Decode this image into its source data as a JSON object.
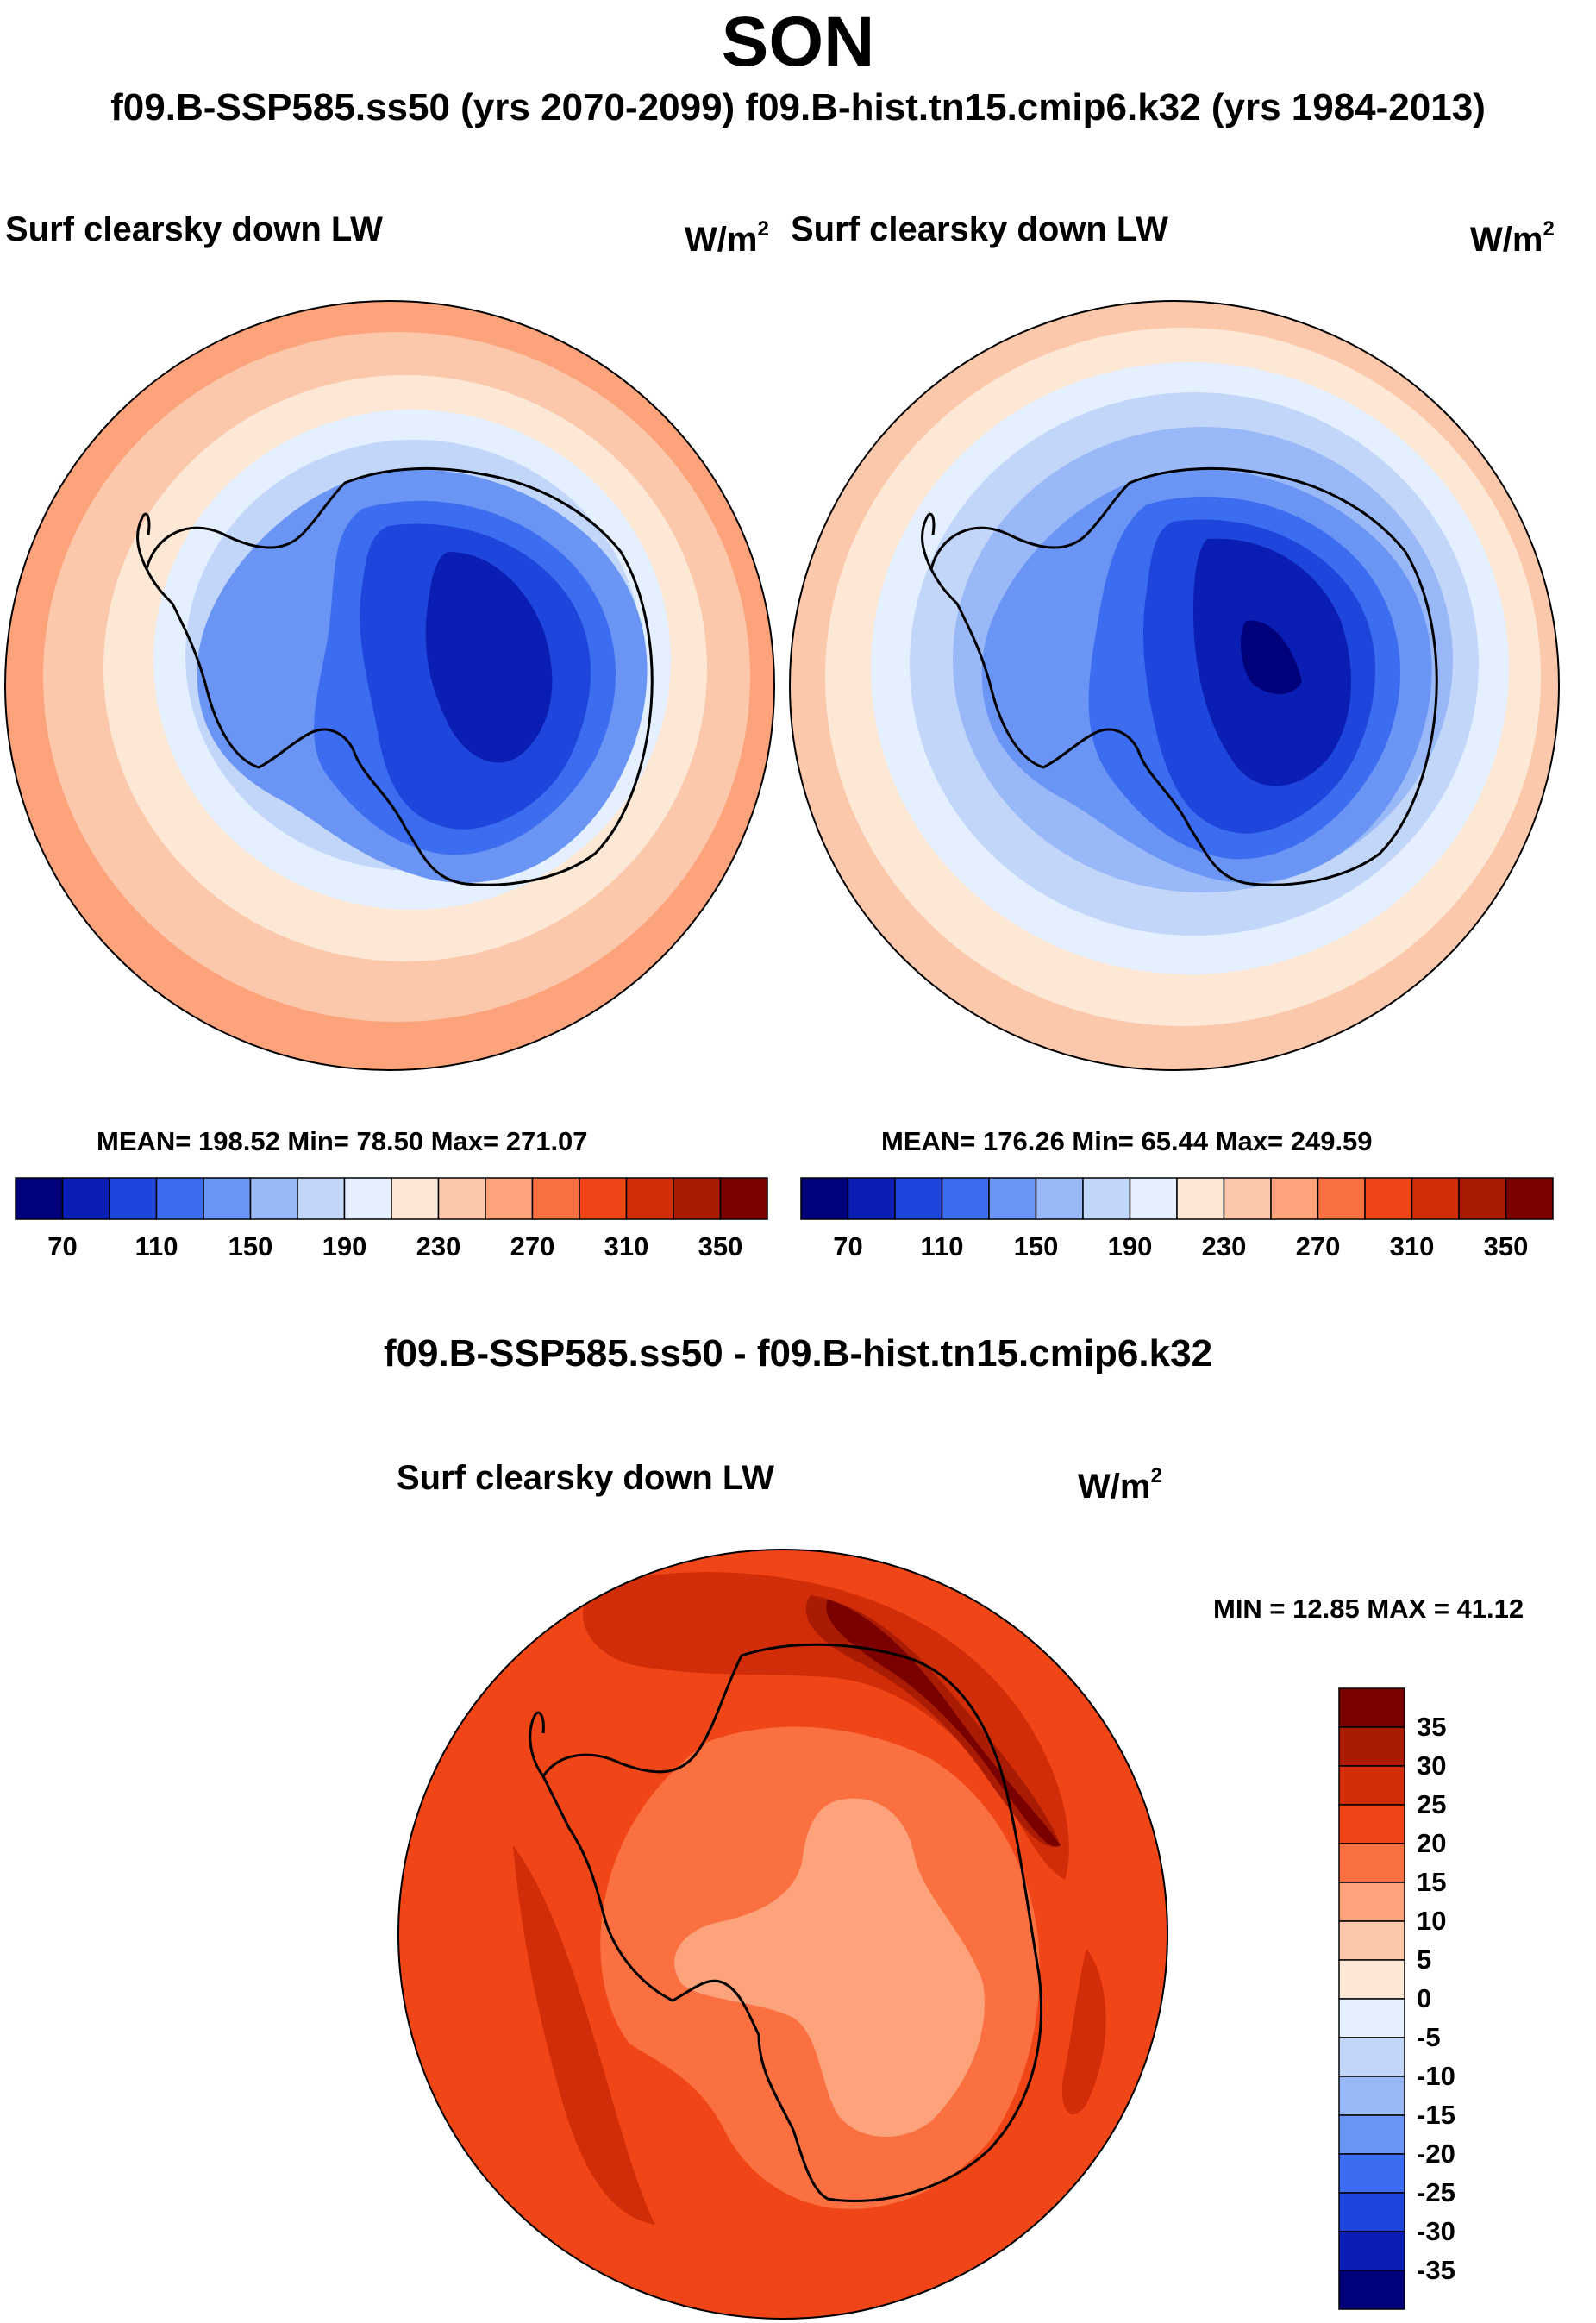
{
  "season_title": "SON",
  "subtitle": "f09.B-SSP585.ss50 (yrs 2070-2099)  f09.B-hist.tn15.cmip6.k32 (yrs 1984-2013)",
  "panels": [
    {
      "variable": "Surf clearsky down LW",
      "units_base": "W/m",
      "units_exp": "2",
      "stats_text": "MEAN= 198.52  Min=  78.50  Max= 271.07"
    },
    {
      "variable": "Surf clearsky down LW",
      "units_base": "W/m",
      "units_exp": "2",
      "stats_text": "MEAN= 176.26  Min=  65.44  Max= 249.59"
    }
  ],
  "colorbar_abs": {
    "ticks": [
      "70",
      "110",
      "150",
      "190",
      "230",
      "270",
      "310",
      "350"
    ],
    "colors": [
      "#00007a",
      "#0a1eb4",
      "#1f46dc",
      "#3c6cf0",
      "#6b95f5",
      "#99b8f8",
      "#c2d6fa",
      "#e4efff",
      "#fde8d6",
      "#fcc8ab",
      "#fca37c",
      "#fa7040",
      "#f04516",
      "#d02d08",
      "#a91b02",
      "#7a0000"
    ]
  },
  "diff": {
    "title": "f09.B-SSP585.ss50 - f09.B-hist.tn15.cmip6.k32",
    "variable": "Surf clearsky down LW",
    "units_base": "W/m",
    "units_exp": "2",
    "minmax_text": "MIN =  12.85 MAX =  41.12",
    "colorbar_ticks": [
      "35",
      "30",
      "25",
      "20",
      "15",
      "10",
      "5",
      "0",
      "-5",
      "-10",
      "-15",
      "-20",
      "-25",
      "-30",
      "-35"
    ],
    "colorbar_colors": [
      "#7a0000",
      "#a91b02",
      "#d02d08",
      "#f04516",
      "#fa7040",
      "#fca37c",
      "#fcc8ab",
      "#fde8d6",
      "#e4efff",
      "#c2d6fa",
      "#99b8f8",
      "#6b95f5",
      "#3c6cf0",
      "#1f46dc",
      "#0a1eb4",
      "#00007a"
    ]
  }
}
